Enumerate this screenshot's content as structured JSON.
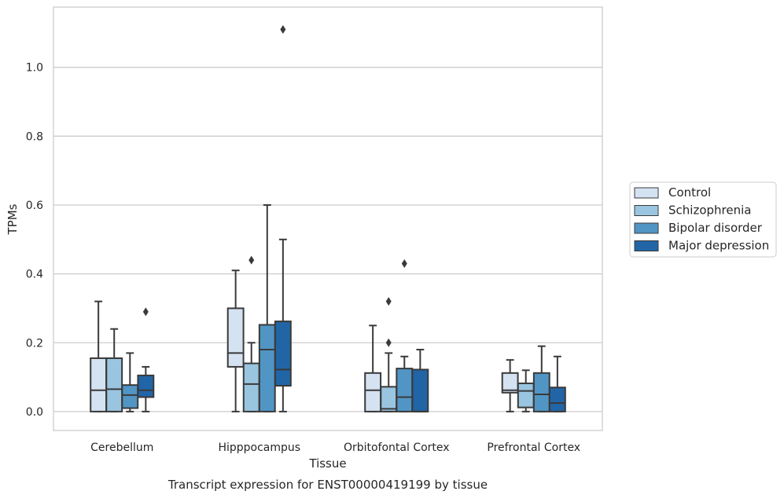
{
  "chart_data": {
    "type": "box",
    "title": "Transcript expression for ENST00000419199 by tissue",
    "xlabel": "Tissue",
    "ylabel": "TPMs",
    "categories": [
      "Cerebellum",
      "Hipppocampus",
      "Orbitofontal Cortex",
      "Prefrontal Cortex"
    ],
    "ylim": [
      -0.055,
      1.175
    ],
    "yticks": [
      {
        "value": 0.0,
        "label": "0.0"
      },
      {
        "value": 0.2,
        "label": "0.2"
      },
      {
        "value": 0.4,
        "label": "0.4"
      },
      {
        "value": 0.6,
        "label": "0.6"
      },
      {
        "value": 0.8,
        "label": "0.8"
      },
      {
        "value": 1.0,
        "label": "1.0"
      }
    ],
    "grid": true,
    "legend_position": "right",
    "series": [
      {
        "name": "Control",
        "color": "#d4e2f1",
        "boxes": [
          {
            "min": 0.0,
            "q1": 0.0,
            "median": 0.062,
            "q3": 0.155,
            "max": 0.32,
            "outliers": []
          },
          {
            "min": 0.0,
            "q1": 0.13,
            "median": 0.17,
            "q3": 0.3,
            "max": 0.41,
            "outliers": []
          },
          {
            "min": 0.0,
            "q1": 0.0,
            "median": 0.062,
            "q3": 0.112,
            "max": 0.25,
            "outliers": []
          },
          {
            "min": 0.0,
            "q1": 0.055,
            "median": 0.062,
            "q3": 0.112,
            "max": 0.15,
            "outliers": []
          }
        ]
      },
      {
        "name": "Schizophrenia",
        "color": "#9ac5e0",
        "boxes": [
          {
            "min": 0.0,
            "q1": 0.0,
            "median": 0.065,
            "q3": 0.155,
            "max": 0.24,
            "outliers": []
          },
          {
            "min": 0.0,
            "q1": 0.0,
            "median": 0.08,
            "q3": 0.14,
            "max": 0.2,
            "outliers": [
              0.44
            ]
          },
          {
            "min": 0.0,
            "q1": 0.0,
            "median": 0.008,
            "q3": 0.072,
            "max": 0.17,
            "outliers": [
              0.2,
              0.32
            ]
          },
          {
            "min": 0.0,
            "q1": 0.012,
            "median": 0.06,
            "q3": 0.082,
            "max": 0.12,
            "outliers": []
          }
        ]
      },
      {
        "name": "Bipolar disorder",
        "color": "#5195c5",
        "boxes": [
          {
            "min": 0.0,
            "q1": 0.01,
            "median": 0.048,
            "q3": 0.077,
            "max": 0.17,
            "outliers": []
          },
          {
            "min": 0.0,
            "q1": 0.0,
            "median": 0.18,
            "q3": 0.252,
            "max": 0.6,
            "outliers": []
          },
          {
            "min": 0.0,
            "q1": 0.0,
            "median": 0.042,
            "q3": 0.125,
            "max": 0.16,
            "outliers": [
              0.43
            ]
          },
          {
            "min": 0.0,
            "q1": 0.0,
            "median": 0.05,
            "q3": 0.112,
            "max": 0.19,
            "outliers": []
          }
        ]
      },
      {
        "name": "Major depression",
        "color": "#2265a6",
        "boxes": [
          {
            "min": 0.0,
            "q1": 0.042,
            "median": 0.062,
            "q3": 0.105,
            "max": 0.13,
            "outliers": [
              0.29
            ]
          },
          {
            "min": 0.0,
            "q1": 0.075,
            "median": 0.122,
            "q3": 0.262,
            "max": 0.5,
            "outliers": [
              1.11
            ]
          },
          {
            "min": 0.0,
            "q1": 0.0,
            "median": 0.0,
            "q3": 0.122,
            "max": 0.18,
            "outliers": []
          },
          {
            "min": 0.0,
            "q1": 0.0,
            "median": 0.025,
            "q3": 0.07,
            "max": 0.16,
            "outliers": []
          }
        ]
      }
    ]
  }
}
